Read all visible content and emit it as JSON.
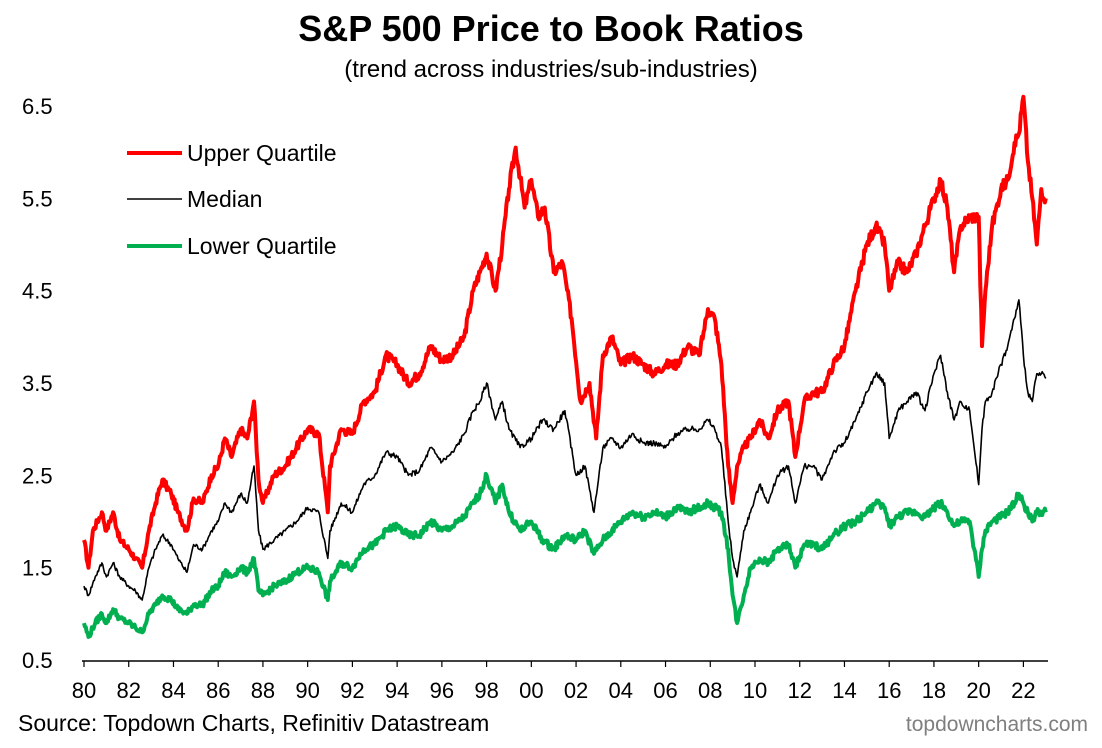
{
  "chart_data": {
    "type": "line",
    "title": "S&P 500 Price to Book Ratios",
    "subtitle": "(trend across industries/sub-industries)",
    "xlabel": "",
    "ylabel": "",
    "xlim": [
      1980.0,
      2023.1
    ],
    "ylim": [
      0.5,
      6.5
    ],
    "y_ticks": [
      0.5,
      1.5,
      2.5,
      3.5,
      4.5,
      5.5,
      6.5
    ],
    "y_tick_labels": [
      "0.5",
      "1.5",
      "2.5",
      "3.5",
      "4.5",
      "5.5",
      "6.5"
    ],
    "x_ticks": [
      1980,
      1982,
      1984,
      1986,
      1988,
      1990,
      1992,
      1994,
      1996,
      1998,
      2000,
      2002,
      2004,
      2006,
      2008,
      2010,
      2012,
      2014,
      2016,
      2018,
      2020,
      2022
    ],
    "x_tick_labels": [
      "80",
      "82",
      "84",
      "86",
      "88",
      "90",
      "92",
      "94",
      "96",
      "98",
      "00",
      "02",
      "04",
      "06",
      "08",
      "10",
      "12",
      "14",
      "16",
      "18",
      "20",
      "22"
    ],
    "legend_position": "top-left",
    "grid": false,
    "series": [
      {
        "name": "Upper Quartile",
        "color": "#ff0000",
        "x": [
          1980.0,
          1980.2,
          1980.4,
          1980.8,
          1981.0,
          1981.3,
          1981.6,
          1982.0,
          1982.3,
          1982.6,
          1982.9,
          1983.2,
          1983.5,
          1983.9,
          1984.2,
          1984.6,
          1984.9,
          1985.3,
          1985.7,
          1986.0,
          1986.3,
          1986.6,
          1987.0,
          1987.3,
          1987.6,
          1987.8,
          1988.0,
          1988.5,
          1989.0,
          1989.5,
          1990.0,
          1990.5,
          1990.9,
          1991.0,
          1991.5,
          1992.0,
          1992.5,
          1993.0,
          1993.5,
          1994.0,
          1994.5,
          1995.0,
          1995.5,
          1996.0,
          1996.5,
          1997.0,
          1997.4,
          1997.7,
          1998.0,
          1998.4,
          1998.7,
          1999.0,
          1999.3,
          1999.7,
          2000.0,
          2000.3,
          2000.6,
          2001.0,
          2001.4,
          2001.8,
          2002.2,
          2002.6,
          2002.9,
          2003.2,
          2003.6,
          2004.0,
          2004.5,
          2005.0,
          2005.5,
          2006.0,
          2006.5,
          2007.0,
          2007.5,
          2007.9,
          2008.2,
          2008.5,
          2008.8,
          2009.0,
          2009.2,
          2009.5,
          2009.8,
          2010.2,
          2010.6,
          2011.0,
          2011.5,
          2011.8,
          2012.2,
          2012.6,
          2013.0,
          2013.5,
          2014.0,
          2014.5,
          2015.0,
          2015.4,
          2015.8,
          2016.0,
          2016.4,
          2016.8,
          2017.2,
          2017.6,
          2018.0,
          2018.3,
          2018.6,
          2018.9,
          2019.2,
          2019.6,
          2020.0,
          2020.15,
          2020.3,
          2020.6,
          2021.0,
          2021.3,
          2021.6,
          2021.8,
          2022.0,
          2022.2,
          2022.4,
          2022.6,
          2022.8,
          2023.0
        ],
        "values": [
          1.8,
          1.5,
          1.9,
          2.1,
          1.9,
          2.1,
          1.8,
          1.7,
          1.6,
          1.5,
          1.9,
          2.2,
          2.45,
          2.3,
          2.1,
          1.9,
          2.25,
          2.2,
          2.5,
          2.6,
          2.9,
          2.7,
          3.0,
          2.9,
          3.3,
          2.45,
          2.2,
          2.5,
          2.6,
          2.8,
          3.0,
          2.95,
          2.1,
          2.6,
          3.0,
          2.95,
          3.3,
          3.4,
          3.8,
          3.7,
          3.5,
          3.6,
          3.9,
          3.75,
          3.8,
          4.0,
          4.5,
          4.7,
          4.9,
          4.5,
          5.0,
          5.6,
          6.05,
          5.4,
          5.7,
          5.3,
          5.4,
          4.7,
          4.8,
          4.2,
          3.3,
          3.5,
          2.9,
          3.8,
          4.0,
          3.7,
          3.8,
          3.7,
          3.6,
          3.7,
          3.7,
          3.9,
          3.8,
          4.3,
          4.2,
          3.7,
          2.6,
          2.2,
          2.6,
          2.8,
          2.9,
          3.1,
          2.9,
          3.2,
          3.3,
          2.7,
          3.3,
          3.4,
          3.4,
          3.7,
          3.9,
          4.5,
          5.0,
          5.2,
          5.0,
          4.5,
          4.8,
          4.7,
          4.9,
          5.2,
          5.5,
          5.7,
          5.4,
          4.7,
          5.2,
          5.3,
          5.3,
          3.9,
          4.5,
          5.2,
          5.6,
          5.7,
          6.1,
          6.2,
          6.6,
          5.9,
          5.5,
          5.0,
          5.6,
          5.5
        ]
      },
      {
        "name": "Median",
        "color": "#000000",
        "x": [
          1980.0,
          1980.2,
          1980.5,
          1980.8,
          1981.0,
          1981.3,
          1981.6,
          1982.0,
          1982.3,
          1982.6,
          1982.9,
          1983.2,
          1983.5,
          1983.9,
          1984.2,
          1984.6,
          1984.9,
          1985.3,
          1985.7,
          1986.0,
          1986.3,
          1986.6,
          1987.0,
          1987.3,
          1987.6,
          1987.8,
          1988.0,
          1988.5,
          1989.0,
          1989.5,
          1990.0,
          1990.5,
          1990.9,
          1991.0,
          1991.5,
          1992.0,
          1992.5,
          1993.0,
          1993.5,
          1994.0,
          1994.5,
          1995.0,
          1995.5,
          1996.0,
          1996.5,
          1997.0,
          1997.4,
          1997.7,
          1998.0,
          1998.4,
          1998.7,
          1999.0,
          1999.5,
          2000.0,
          2000.5,
          2001.0,
          2001.5,
          2002.0,
          2002.4,
          2002.8,
          2003.2,
          2003.6,
          2004.0,
          2004.5,
          2005.0,
          2005.5,
          2006.0,
          2006.5,
          2007.0,
          2007.5,
          2007.9,
          2008.2,
          2008.5,
          2008.8,
          2009.0,
          2009.2,
          2009.5,
          2009.8,
          2010.2,
          2010.6,
          2011.0,
          2011.5,
          2011.8,
          2012.2,
          2012.6,
          2013.0,
          2013.5,
          2014.0,
          2014.5,
          2015.0,
          2015.4,
          2015.8,
          2016.0,
          2016.4,
          2016.8,
          2017.2,
          2017.6,
          2018.0,
          2018.3,
          2018.6,
          2018.9,
          2019.2,
          2019.6,
          2020.0,
          2020.15,
          2020.3,
          2020.6,
          2021.0,
          2021.3,
          2021.6,
          2021.8,
          2022.0,
          2022.2,
          2022.4,
          2022.6,
          2022.8,
          2023.0
        ],
        "values": [
          1.3,
          1.2,
          1.4,
          1.55,
          1.4,
          1.55,
          1.4,
          1.3,
          1.25,
          1.15,
          1.5,
          1.7,
          1.85,
          1.75,
          1.6,
          1.45,
          1.75,
          1.7,
          1.9,
          2.0,
          2.2,
          2.1,
          2.3,
          2.2,
          2.6,
          1.9,
          1.7,
          1.8,
          1.9,
          2.0,
          2.15,
          2.1,
          1.6,
          1.9,
          2.2,
          2.1,
          2.4,
          2.5,
          2.75,
          2.7,
          2.5,
          2.55,
          2.8,
          2.65,
          2.75,
          2.95,
          3.2,
          3.3,
          3.5,
          3.1,
          3.3,
          3.0,
          2.8,
          2.9,
          3.1,
          3.0,
          3.2,
          2.5,
          2.6,
          2.1,
          2.8,
          2.9,
          2.8,
          2.95,
          2.85,
          2.85,
          2.8,
          2.95,
          3.0,
          3.0,
          3.1,
          3.0,
          2.8,
          2.0,
          1.6,
          1.4,
          1.9,
          2.1,
          2.4,
          2.2,
          2.5,
          2.6,
          2.2,
          2.6,
          2.6,
          2.45,
          2.75,
          2.85,
          3.1,
          3.4,
          3.6,
          3.5,
          2.9,
          3.2,
          3.3,
          3.4,
          3.2,
          3.6,
          3.8,
          3.4,
          3.1,
          3.3,
          3.2,
          2.4,
          3.0,
          3.3,
          3.4,
          3.7,
          3.9,
          4.2,
          4.4,
          3.8,
          3.4,
          3.3,
          3.6,
          3.6,
          3.55
        ]
      },
      {
        "name": "Lower Quartile",
        "color": "#00b050",
        "x": [
          1980.0,
          1980.2,
          1980.5,
          1980.8,
          1981.0,
          1981.3,
          1981.6,
          1982.0,
          1982.3,
          1982.6,
          1982.9,
          1983.2,
          1983.5,
          1983.9,
          1984.2,
          1984.6,
          1984.9,
          1985.3,
          1985.7,
          1986.0,
          1986.3,
          1986.6,
          1987.0,
          1987.3,
          1987.6,
          1987.8,
          1988.0,
          1988.5,
          1989.0,
          1989.5,
          1990.0,
          1990.5,
          1990.9,
          1991.0,
          1991.5,
          1992.0,
          1992.5,
          1993.0,
          1993.5,
          1994.0,
          1994.5,
          1995.0,
          1995.5,
          1996.0,
          1996.5,
          1997.0,
          1997.4,
          1997.7,
          1998.0,
          1998.4,
          1998.7,
          1999.0,
          1999.5,
          2000.0,
          2000.5,
          2001.0,
          2001.5,
          2002.0,
          2002.4,
          2002.8,
          2003.2,
          2003.6,
          2004.0,
          2004.5,
          2005.0,
          2005.5,
          2006.0,
          2006.5,
          2007.0,
          2007.5,
          2007.9,
          2008.2,
          2008.5,
          2008.8,
          2009.0,
          2009.2,
          2009.5,
          2009.8,
          2010.2,
          2010.6,
          2011.0,
          2011.5,
          2011.8,
          2012.2,
          2012.6,
          2013.0,
          2013.5,
          2014.0,
          2014.5,
          2015.0,
          2015.4,
          2015.8,
          2016.0,
          2016.4,
          2016.8,
          2017.2,
          2017.6,
          2018.0,
          2018.3,
          2018.6,
          2018.9,
          2019.2,
          2019.6,
          2020.0,
          2020.15,
          2020.3,
          2020.6,
          2021.0,
          2021.3,
          2021.6,
          2021.8,
          2022.0,
          2022.2,
          2022.4,
          2022.6,
          2022.8,
          2023.0
        ],
        "values": [
          0.9,
          0.75,
          0.9,
          1.0,
          0.9,
          1.05,
          0.95,
          0.9,
          0.85,
          0.8,
          1.0,
          1.1,
          1.2,
          1.15,
          1.05,
          1.0,
          1.1,
          1.1,
          1.25,
          1.3,
          1.45,
          1.4,
          1.5,
          1.45,
          1.6,
          1.25,
          1.2,
          1.3,
          1.35,
          1.45,
          1.5,
          1.45,
          1.15,
          1.35,
          1.55,
          1.5,
          1.7,
          1.75,
          1.9,
          1.95,
          1.85,
          1.85,
          2.0,
          1.9,
          1.95,
          2.05,
          2.2,
          2.3,
          2.5,
          2.2,
          2.4,
          2.1,
          1.9,
          2.0,
          1.8,
          1.7,
          1.85,
          1.8,
          1.9,
          1.65,
          1.8,
          1.9,
          2.0,
          2.1,
          2.05,
          2.1,
          2.05,
          2.15,
          2.1,
          2.15,
          2.2,
          2.15,
          2.1,
          1.7,
          1.2,
          0.9,
          1.2,
          1.5,
          1.6,
          1.55,
          1.7,
          1.75,
          1.5,
          1.75,
          1.75,
          1.7,
          1.85,
          1.95,
          2.0,
          2.1,
          2.2,
          2.15,
          1.95,
          2.05,
          2.1,
          2.1,
          2.05,
          2.15,
          2.2,
          2.1,
          1.95,
          2.0,
          2.0,
          1.4,
          1.7,
          1.9,
          2.0,
          2.05,
          2.1,
          2.2,
          2.3,
          2.2,
          2.1,
          2.0,
          2.1,
          2.1,
          2.1
        ]
      }
    ]
  },
  "footer": {
    "source": "Source: Topdown Charts, Refinitiv Datastream",
    "watermark": "topdowncharts.com"
  }
}
